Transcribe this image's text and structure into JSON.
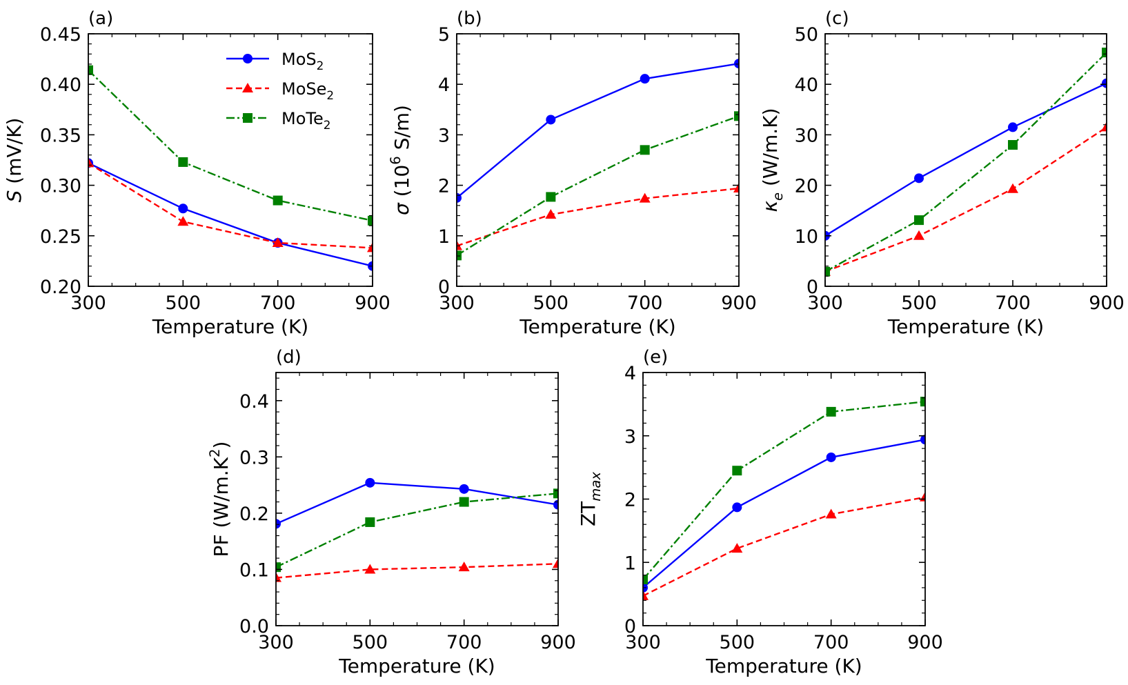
{
  "figure": {
    "series_styles": {
      "MoS2": {
        "color": "#0000ff",
        "marker": "circle",
        "dash": "solid"
      },
      "MoSe2": {
        "color": "#ff0000",
        "marker": "triangle",
        "dash": "dashed"
      },
      "MoTe2": {
        "color": "#008000",
        "marker": "square",
        "dash": "dashdot"
      }
    },
    "legend": {
      "placement": "top-right of panel (a)",
      "entries": [
        {
          "key": "MoS2",
          "base": "MoS",
          "sub": "2"
        },
        {
          "key": "MoSe2",
          "base": "MoSe",
          "sub": "2"
        },
        {
          "key": "MoTe2",
          "base": "MoTe",
          "sub": "2"
        }
      ]
    }
  },
  "chart_data": [
    {
      "id": "a",
      "type": "line",
      "panel_label": "(a)",
      "xlabel": "Temperature (K)",
      "ylabel_parts": [
        {
          "t": "S",
          "italic": true
        },
        {
          "t": " (mV/K)"
        }
      ],
      "x": [
        300,
        500,
        700,
        900
      ],
      "xlim": [
        300,
        900
      ],
      "ylim": [
        0.2,
        0.45
      ],
      "xticks": [
        "300",
        "500",
        "700",
        "900"
      ],
      "yticks": [
        "0.20",
        "0.25",
        "0.30",
        "0.35",
        "0.40",
        "0.45"
      ],
      "series": [
        {
          "name": "MoS2",
          "values": [
            0.322,
            0.277,
            0.243,
            0.22
          ]
        },
        {
          "name": "MoSe2",
          "values": [
            0.322,
            0.264,
            0.243,
            0.238
          ]
        },
        {
          "name": "MoTe2",
          "values": [
            0.414,
            0.323,
            0.285,
            0.265
          ]
        }
      ]
    },
    {
      "id": "b",
      "type": "line",
      "panel_label": "(b)",
      "xlabel": "Temperature (K)",
      "ylabel_parts": [
        {
          "t": "σ",
          "italic": true
        },
        {
          "t": " (10"
        },
        {
          "t": "6",
          "sup": true
        },
        {
          "t": " S/m)"
        }
      ],
      "x": [
        300,
        500,
        700,
        900
      ],
      "xlim": [
        300,
        900
      ],
      "ylim": [
        0,
        5
      ],
      "xticks": [
        "300",
        "500",
        "700",
        "900"
      ],
      "yticks": [
        "0",
        "1",
        "2",
        "3",
        "4",
        "5"
      ],
      "series": [
        {
          "name": "MoS2",
          "values": [
            1.75,
            3.3,
            4.11,
            4.41
          ]
        },
        {
          "name": "MoSe2",
          "values": [
            0.8,
            1.42,
            1.74,
            1.94
          ]
        },
        {
          "name": "MoTe2",
          "values": [
            0.61,
            1.77,
            2.7,
            3.37
          ]
        }
      ]
    },
    {
      "id": "c",
      "type": "line",
      "panel_label": "(c)",
      "xlabel": "Temperature (K)",
      "ylabel_parts": [
        {
          "t": "κ",
          "italic": true
        },
        {
          "t": "e",
          "italic": true,
          "sub": true
        },
        {
          "t": " (W/m.K)"
        }
      ],
      "x": [
        300,
        500,
        700,
        900
      ],
      "xlim": [
        300,
        900
      ],
      "ylim": [
        0,
        50
      ],
      "xticks": [
        "300",
        "500",
        "700",
        "900"
      ],
      "yticks": [
        "0",
        "10",
        "20",
        "30",
        "40",
        "50"
      ],
      "series": [
        {
          "name": "MoS2",
          "values": [
            10.0,
            21.4,
            31.5,
            40.2
          ]
        },
        {
          "name": "MoSe2",
          "values": [
            2.9,
            10.0,
            19.3,
            31.5
          ]
        },
        {
          "name": "MoTe2",
          "values": [
            2.9,
            13.1,
            28.0,
            46.3
          ]
        }
      ]
    },
    {
      "id": "d",
      "type": "line",
      "panel_label": "(d)",
      "xlabel": "Temperature (K)",
      "ylabel_parts": [
        {
          "t": "PF (W/m.K"
        },
        {
          "t": "2",
          "sup": true
        },
        {
          "t": ")"
        }
      ],
      "x": [
        300,
        500,
        700,
        900
      ],
      "xlim": [
        300,
        900
      ],
      "ylim": [
        0.0,
        0.45
      ],
      "xticks": [
        "300",
        "500",
        "700",
        "900"
      ],
      "yticks": [
        "0.0",
        "0.1",
        "0.2",
        "0.3",
        "0.4"
      ],
      "ytick_values": [
        0.0,
        0.1,
        0.2,
        0.3,
        0.4
      ],
      "series": [
        {
          "name": "MoS2",
          "values": [
            0.181,
            0.254,
            0.243,
            0.215
          ]
        },
        {
          "name": "MoSe2",
          "values": [
            0.085,
            0.1,
            0.104,
            0.11
          ]
        },
        {
          "name": "MoTe2",
          "values": [
            0.104,
            0.184,
            0.22,
            0.235
          ]
        }
      ]
    },
    {
      "id": "e",
      "type": "line",
      "panel_label": "(e)",
      "xlabel": "Temperature (K)",
      "ylabel_parts": [
        {
          "t": "ZT"
        },
        {
          "t": "max",
          "italic": true,
          "sub": true
        }
      ],
      "x": [
        300,
        500,
        700,
        900
      ],
      "xlim": [
        300,
        900
      ],
      "ylim": [
        0,
        4
      ],
      "xticks": [
        "300",
        "500",
        "700",
        "900"
      ],
      "yticks": [
        "0",
        "1",
        "2",
        "3",
        "4"
      ],
      "series": [
        {
          "name": "MoS2",
          "values": [
            0.6,
            1.87,
            2.66,
            2.94
          ]
        },
        {
          "name": "MoSe2",
          "values": [
            0.47,
            1.22,
            1.76,
            2.03
          ]
        },
        {
          "name": "MoTe2",
          "values": [
            0.73,
            2.45,
            3.38,
            3.54
          ]
        }
      ]
    }
  ]
}
